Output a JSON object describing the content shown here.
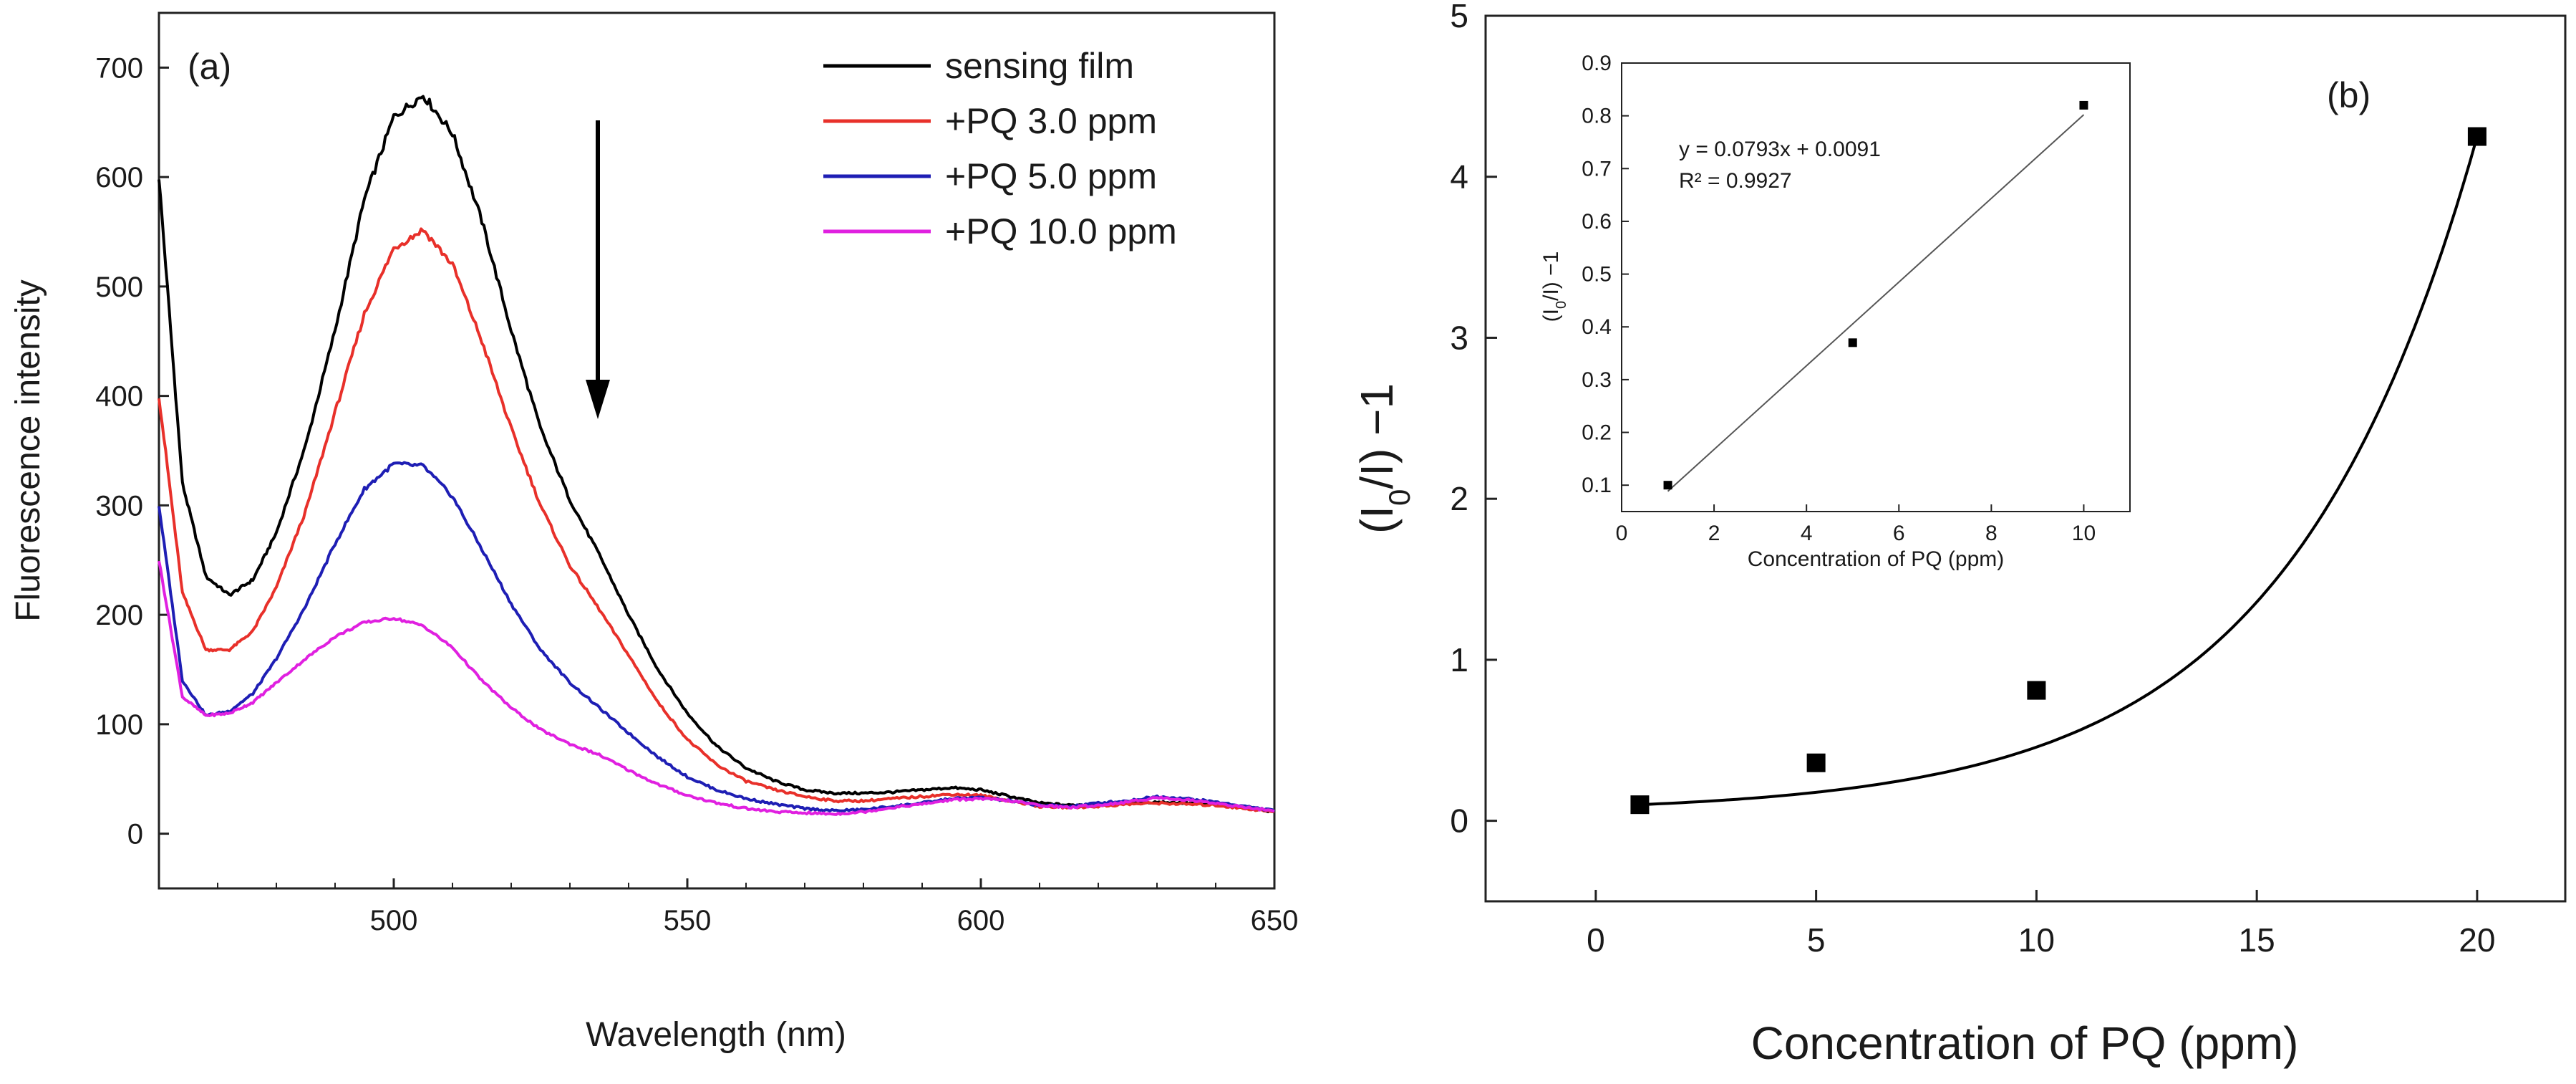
{
  "chart_data": [
    {
      "id": "a",
      "type": "line",
      "panel_label": "(a)",
      "xlabel": "Wavelength (nm)",
      "ylabel": "Fluorescence intensity",
      "xlim": [
        460,
        650
      ],
      "ylim": [
        -50,
        750
      ],
      "xticks": [
        "500",
        "550",
        "600",
        "650"
      ],
      "yticks": [
        "0",
        "100",
        "200",
        "300",
        "400",
        "500",
        "600",
        "700"
      ],
      "legend_position": "top-right",
      "annotation": "downward arrow indicating fluorescence quenching with increasing PQ",
      "series": [
        {
          "name": "sensing film",
          "color": "#000000",
          "x": [
            460,
            464,
            468,
            472,
            476,
            480,
            485,
            490,
            495,
            500,
            505,
            510,
            515,
            520,
            525,
            530,
            535,
            540,
            545,
            550,
            555,
            560,
            565,
            570,
            575,
            580,
            585,
            590,
            595,
            600,
            605,
            610,
            615,
            620,
            625,
            630,
            635,
            640,
            645,
            650
          ],
          "y": [
            600,
            320,
            235,
            218,
            232,
            275,
            355,
            460,
            580,
            655,
            675,
            640,
            560,
            460,
            370,
            305,
            255,
            200,
            150,
            110,
            80,
            60,
            48,
            40,
            37,
            37,
            38,
            40,
            42,
            40,
            34,
            28,
            26,
            27,
            28,
            29,
            28,
            27,
            24,
            20
          ]
        },
        {
          "name": "+PQ 3.0 ppm",
          "color": "#e8302a",
          "x": [
            460,
            464,
            468,
            472,
            476,
            480,
            485,
            490,
            495,
            500,
            505,
            510,
            515,
            520,
            525,
            530,
            535,
            540,
            545,
            550,
            555,
            560,
            565,
            570,
            575,
            580,
            585,
            590,
            595,
            600,
            605,
            610,
            615,
            620,
            625,
            630,
            635,
            640,
            645,
            650
          ],
          "y": [
            400,
            220,
            168,
            168,
            185,
            225,
            295,
            385,
            475,
            535,
            552,
            520,
            450,
            370,
            300,
            245,
            205,
            163,
            120,
            86,
            63,
            48,
            40,
            34,
            30,
            30,
            32,
            34,
            36,
            35,
            30,
            25,
            24,
            25,
            27,
            28,
            27,
            26,
            23,
            20
          ]
        },
        {
          "name": "+PQ 5.0 ppm",
          "color": "#1e1eb4",
          "x": [
            460,
            464,
            468,
            472,
            476,
            480,
            485,
            490,
            495,
            500,
            505,
            510,
            515,
            520,
            525,
            530,
            535,
            540,
            545,
            550,
            555,
            560,
            565,
            570,
            575,
            580,
            585,
            590,
            595,
            600,
            605,
            610,
            615,
            620,
            625,
            630,
            635,
            640,
            645,
            650
          ],
          "y": [
            300,
            140,
            108,
            112,
            128,
            160,
            208,
            265,
            315,
            338,
            336,
            308,
            260,
            210,
            168,
            138,
            115,
            92,
            70,
            52,
            40,
            32,
            27,
            23,
            21,
            22,
            25,
            28,
            32,
            33,
            30,
            26,
            25,
            28,
            30,
            34,
            32,
            29,
            25,
            21
          ]
        },
        {
          "name": "+PQ 10.0 ppm",
          "color": "#e020e0",
          "x": [
            460,
            464,
            468,
            472,
            476,
            480,
            485,
            490,
            495,
            500,
            505,
            510,
            515,
            520,
            525,
            530,
            535,
            540,
            545,
            550,
            555,
            560,
            565,
            570,
            575,
            580,
            585,
            590,
            595,
            600,
            605,
            610,
            615,
            620,
            625,
            630,
            635,
            640,
            645,
            650
          ],
          "y": [
            250,
            125,
            108,
            110,
            120,
            138,
            160,
            180,
            193,
            197,
            190,
            170,
            140,
            115,
            95,
            82,
            72,
            58,
            45,
            35,
            28,
            23,
            20,
            19,
            18,
            20,
            24,
            27,
            31,
            32,
            30,
            26,
            24,
            26,
            29,
            33,
            31,
            28,
            24,
            21
          ]
        }
      ]
    },
    {
      "id": "b",
      "type": "scatter",
      "panel_label": "(b)",
      "xlabel": "Concentration of PQ (ppm)",
      "ylabel_main": "(I",
      "ylabel_sub": "0",
      "ylabel_rest": "/I) −1",
      "xlim": [
        -2.5,
        22
      ],
      "ylim": [
        -0.5,
        5
      ],
      "xticks": [
        "0",
        "5",
        "10",
        "15",
        "20"
      ],
      "yticks": [
        "0",
        "1",
        "2",
        "3",
        "4",
        "5"
      ],
      "points": {
        "x": [
          1,
          5,
          10,
          20
        ],
        "y": [
          0.1,
          0.36,
          0.81,
          4.25
        ]
      },
      "fit_curve": "exponential",
      "inset": {
        "type": "scatter",
        "xlabel": "Concentration of PQ (ppm)",
        "ylabel_main": "(I",
        "ylabel_sub": "0",
        "ylabel_rest": "/I) −1",
        "xlim": [
          0,
          11
        ],
        "ylim": [
          0.05,
          0.9
        ],
        "xticks": [
          "0",
          "2",
          "4",
          "6",
          "8",
          "10"
        ],
        "yticks": [
          "0.1",
          "0.2",
          "0.3",
          "0.4",
          "0.5",
          "0.6",
          "0.7",
          "0.8",
          "0.9"
        ],
        "points": {
          "x": [
            1,
            5,
            10
          ],
          "y": [
            0.1,
            0.37,
            0.82
          ]
        },
        "fit": {
          "slope": 0.0793,
          "intercept": 0.0091
        },
        "equation": "y = 0.0793x + 0.0091",
        "r_squared": "R² = 0.9927"
      }
    }
  ]
}
